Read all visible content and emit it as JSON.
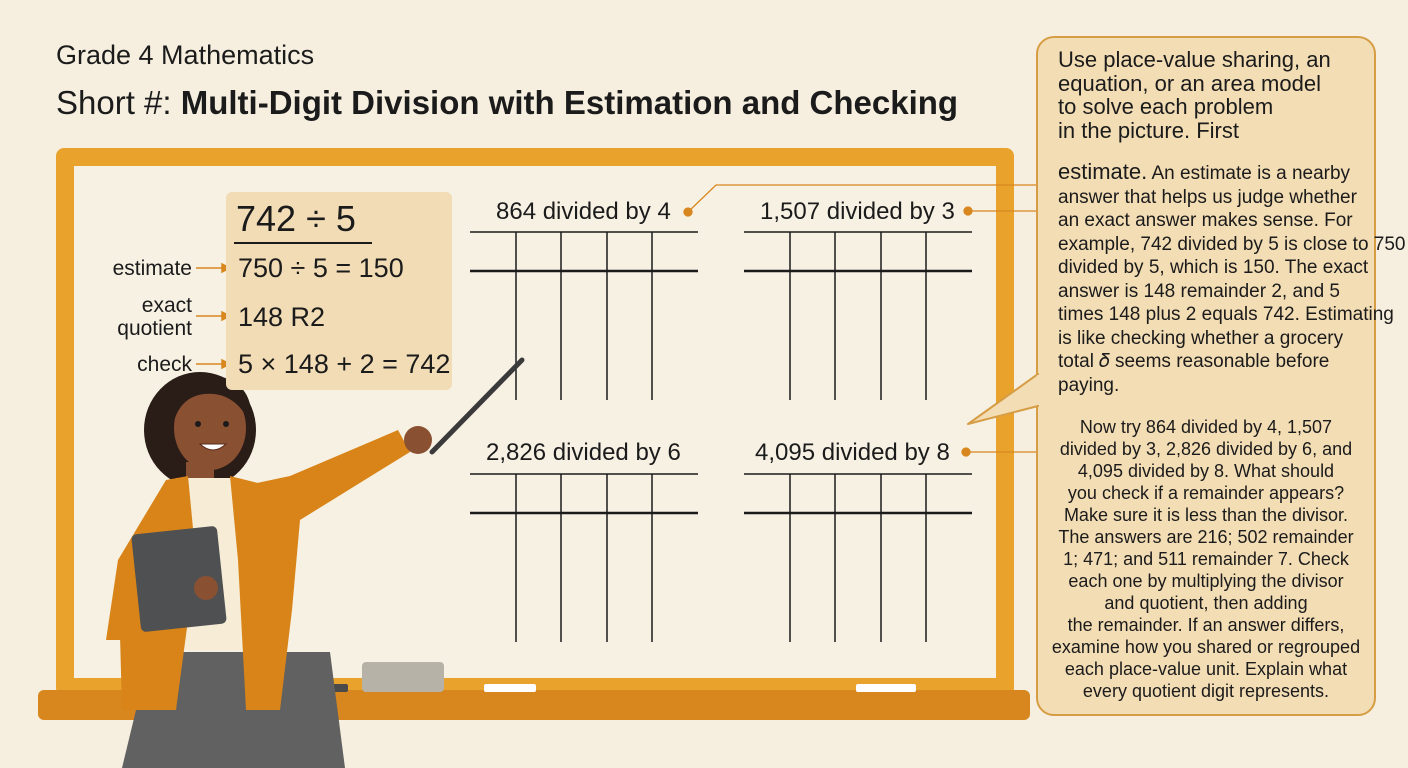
{
  "header": {
    "subtitle": "Grade 4 Mathematics",
    "title_prefix": "Short #: ",
    "title_main": "Multi-Digit Division with Estimation and Checking"
  },
  "example": {
    "problem": "742 ÷ 5",
    "estimate_label": "estimate",
    "estimate_value": "750 ÷ 5 = 150",
    "exact_label_line1": "exact",
    "exact_label_line2": "quotient",
    "exact_value": "148 R2",
    "check_label": "check",
    "check_value": "5 × 148 + 2 = 742"
  },
  "problems": [
    {
      "label": "864 divided by 4"
    },
    {
      "label": "1,507 divided by 3"
    },
    {
      "label": "2,826 divided by 6"
    },
    {
      "label": "4,095 divided by 8"
    }
  ],
  "callout": {
    "lines_top": [
      "Use place-value sharing, an",
      "equation, or an area model",
      "to solve each problem",
      "in the picture. First"
    ],
    "lines_mid_lead": "estimate.",
    "lines_mid_first_rest": " An estimate is a nearby",
    "lines_mid": [
      "answer that helps us judge whether",
      "an exact answer makes sense. For",
      "example, 742 divided by 5 is close to 750",
      "divided by 5, which is 150. The exact",
      "answer is 148 remainder 2, and 5",
      "times 148 plus 2 equals 742. Estimating",
      "is like checking whether a grocery",
      "total 𝛿 seems reasonable before",
      "paying."
    ],
    "lines_bottom": [
      "Now try 864 divided by 4, 1,507",
      "divided by 3, 2,826 divided by 6, and",
      "4,095 divided by 8. What should",
      "you check if a remainder appears?",
      "Make sure it is less than the divisor.",
      "The answers are 216; 502 remainder",
      "1; 471; and 511 remainder 7. Check",
      "each one by multiplying the divisor",
      "and quotient, then adding",
      "the remainder. If an answer differs,",
      "examine how you shared or regrouped",
      "each place-value unit. Explain what",
      "every quotient digit represents."
    ]
  },
  "colors": {
    "background": "#f6efdf",
    "board_frame": "#e9a32d",
    "board_surface": "#f7f1e4",
    "accent_orange": "#d8871f",
    "callout_fill": "#f3ddb5"
  }
}
